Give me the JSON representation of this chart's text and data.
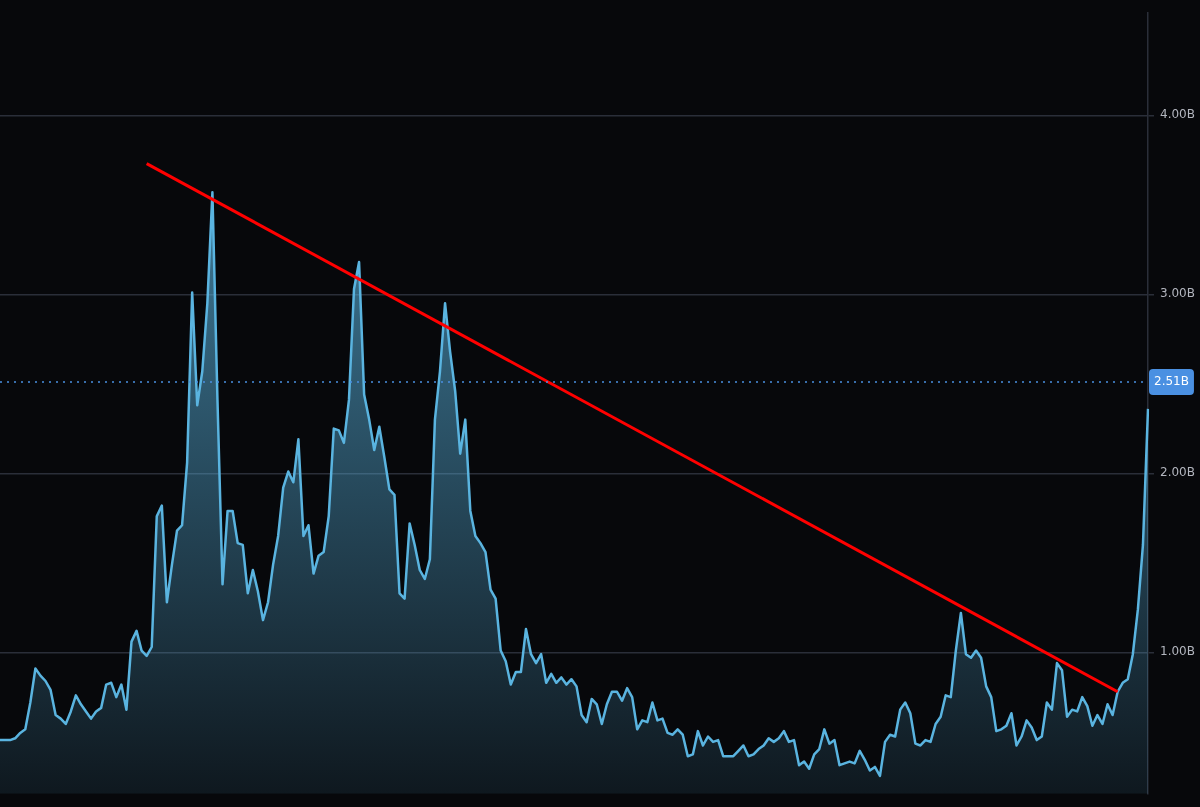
{
  "chart_data": {
    "type": "area",
    "categories": [
      null,
      null,
      null,
      null,
      null,
      null,
      null,
      null,
      null,
      null,
      null,
      null,
      null,
      null,
      null,
      null,
      null,
      null,
      null,
      null,
      null,
      null,
      null,
      null,
      null,
      null,
      null,
      null,
      null,
      null,
      null,
      null,
      null,
      null,
      null,
      null,
      null,
      null,
      null,
      null,
      null,
      null,
      null,
      null,
      null,
      null,
      null,
      null,
      null,
      null,
      null,
      null,
      null,
      null,
      null,
      null,
      null,
      null,
      null,
      null,
      null,
      null,
      null,
      null,
      null,
      null,
      null,
      null,
      null,
      null,
      null,
      null,
      null,
      null,
      null,
      null,
      null,
      null,
      null,
      null,
      null,
      null,
      null,
      null,
      null,
      null,
      null,
      null,
      null,
      null,
      null,
      null,
      null,
      null,
      null,
      null,
      null,
      null,
      null,
      null,
      null,
      null,
      null,
      null,
      null,
      null,
      null,
      null,
      null,
      null,
      null,
      null,
      null,
      null,
      null,
      null,
      null,
      null,
      null,
      null,
      null,
      null,
      null,
      null,
      null,
      null,
      null,
      null,
      null,
      null,
      null,
      null,
      null,
      null,
      null,
      null,
      null,
      null,
      null,
      null,
      null,
      null,
      null,
      null,
      null,
      null,
      null,
      null,
      null,
      null,
      null,
      null,
      null,
      null,
      null,
      null,
      null,
      null,
      null,
      null,
      null,
      null,
      null,
      null,
      null,
      null,
      null,
      null,
      null,
      null,
      null,
      null,
      null,
      null,
      null,
      null,
      null,
      null,
      null,
      null,
      null,
      null,
      null,
      null,
      null,
      null,
      null,
      null,
      null,
      null,
      null,
      null,
      null,
      null,
      null,
      null,
      null,
      null,
      null,
      null,
      null,
      null,
      null,
      null,
      null,
      null,
      null,
      null,
      null,
      null,
      null,
      null,
      null,
      null,
      null,
      null,
      null,
      null,
      null,
      null,
      null,
      null,
      null,
      null,
      null,
      null,
      null,
      null
    ],
    "series": [
      {
        "color": "#5ab4e0",
        "values": [
          0.51,
          0.51,
          0.51,
          0.52,
          0.55,
          0.57,
          0.72,
          0.91,
          0.87,
          0.84,
          0.79,
          0.65,
          0.63,
          0.6,
          0.67,
          0.76,
          0.71,
          0.67,
          0.63,
          0.67,
          0.69,
          0.82,
          0.83,
          0.75,
          0.82,
          0.68,
          1.06,
          1.12,
          1.01,
          0.98,
          1.03,
          1.76,
          1.82,
          1.28,
          1.49,
          1.68,
          1.71,
          2.06,
          3.01,
          2.38,
          2.57,
          2.95,
          3.57,
          2.41,
          1.38,
          1.79,
          1.79,
          1.61,
          1.6,
          1.33,
          1.46,
          1.34,
          1.18,
          1.28,
          1.49,
          1.65,
          1.92,
          2.01,
          1.95,
          2.19,
          1.65,
          1.71,
          1.44,
          1.54,
          1.56,
          1.76,
          2.25,
          2.24,
          2.17,
          2.41,
          3.03,
          3.18,
          2.44,
          2.3,
          2.13,
          2.26,
          2.09,
          1.91,
          1.88,
          1.33,
          1.3,
          1.72,
          1.6,
          1.46,
          1.41,
          1.52,
          2.3,
          2.57,
          2.95,
          2.68,
          2.46,
          2.11,
          2.3,
          1.79,
          1.65,
          1.61,
          1.56,
          1.35,
          1.3,
          1.01,
          0.95,
          0.82,
          0.89,
          0.89,
          1.13,
          0.99,
          0.94,
          0.99,
          0.83,
          0.88,
          0.83,
          0.86,
          0.82,
          0.85,
          0.81,
          0.65,
          0.61,
          0.74,
          0.71,
          0.6,
          0.71,
          0.78,
          0.78,
          0.73,
          0.8,
          0.75,
          0.57,
          0.62,
          0.61,
          0.72,
          0.62,
          0.63,
          0.55,
          0.54,
          0.57,
          0.54,
          0.42,
          0.43,
          0.56,
          0.48,
          0.53,
          0.5,
          0.51,
          0.42,
          0.42,
          0.42,
          0.45,
          0.48,
          0.42,
          0.43,
          0.46,
          0.48,
          0.52,
          0.5,
          0.52,
          0.56,
          0.5,
          0.51,
          0.37,
          0.39,
          0.35,
          0.43,
          0.46,
          0.57,
          0.49,
          0.51,
          0.37,
          0.38,
          0.39,
          0.38,
          0.45,
          0.4,
          0.34,
          0.36,
          0.31,
          0.5,
          0.54,
          0.53,
          0.68,
          0.72,
          0.66,
          0.49,
          0.48,
          0.51,
          0.5,
          0.6,
          0.64,
          0.76,
          0.75,
          1.01,
          1.22,
          0.99,
          0.97,
          1.01,
          0.97,
          0.81,
          0.75,
          0.56,
          0.57,
          0.59,
          0.66,
          0.48,
          0.53,
          0.62,
          0.58,
          0.51,
          0.53,
          0.72,
          0.68,
          0.94,
          0.9,
          0.64,
          0.68,
          0.67,
          0.75,
          0.7,
          0.59,
          0.65,
          0.6,
          0.71,
          0.65,
          0.78,
          0.83,
          0.85,
          0.99,
          1.24,
          1.6,
          2.36
        ]
      },
      {
        "type": "line",
        "color": "#ff0000",
        "values": [
          null,
          null,
          null,
          null,
          null,
          null,
          null,
          null,
          null,
          null,
          null,
          null,
          null,
          null,
          null,
          null,
          null,
          null,
          null,
          null,
          null,
          null,
          null,
          null,
          null,
          null,
          null,
          null,
          null,
          3.73,
          null,
          null,
          null,
          null,
          null,
          null,
          null,
          null,
          null,
          null,
          null,
          null,
          null,
          null,
          null,
          null,
          null,
          null,
          null,
          null,
          null,
          null,
          null,
          null,
          null,
          null,
          null,
          null,
          null,
          null,
          null,
          null,
          null,
          null,
          null,
          null,
          null,
          null,
          null,
          null,
          null,
          null,
          null,
          null,
          null,
          null,
          null,
          null,
          null,
          null,
          null,
          null,
          null,
          null,
          null,
          null,
          null,
          null,
          null,
          null,
          null,
          null,
          null,
          null,
          null,
          null,
          null,
          null,
          null,
          null,
          null,
          null,
          null,
          null,
          null,
          null,
          null,
          null,
          null,
          null,
          null,
          null,
          null,
          null,
          null,
          null,
          null,
          null,
          null,
          null,
          null,
          null,
          null,
          null,
          null,
          null,
          null,
          null,
          null,
          null,
          null,
          null,
          null,
          null,
          null,
          null,
          null,
          null,
          null,
          null,
          null,
          null,
          null,
          null,
          null,
          null,
          null,
          null,
          null,
          null,
          null,
          null,
          null,
          null,
          null,
          null,
          null,
          null,
          null,
          null,
          null,
          null,
          null,
          null,
          null,
          null,
          null,
          null,
          null,
          null,
          null,
          null,
          null,
          null,
          null,
          null,
          null,
          null,
          null,
          null,
          null,
          null,
          null,
          null,
          null,
          null,
          null,
          null,
          null,
          null,
          null,
          null,
          null,
          null,
          null,
          null,
          null,
          null,
          null,
          null,
          null,
          null,
          null,
          null,
          null,
          null,
          null,
          null,
          null,
          null,
          null,
          null,
          null,
          null,
          null,
          null,
          null,
          null,
          null,
          null,
          null,
          0.78,
          null,
          null,
          null,
          null,
          null,
          null
        ]
      }
    ],
    "ylim": [
      0.21,
      4.57
    ],
    "yticks": [
      {
        "value": 1,
        "label": "1.00B"
      },
      {
        "value": 2,
        "label": "2.00B"
      },
      {
        "value": 3,
        "label": "3.00B"
      },
      {
        "value": 4,
        "label": "4.00B"
      }
    ],
    "ref_lines": [
      {
        "axis": "y",
        "value": 2.51,
        "label": "2.51B",
        "color": "#4a90e2",
        "line_style": "dotted"
      }
    ],
    "grid": "y",
    "tick_labels": "y"
  }
}
